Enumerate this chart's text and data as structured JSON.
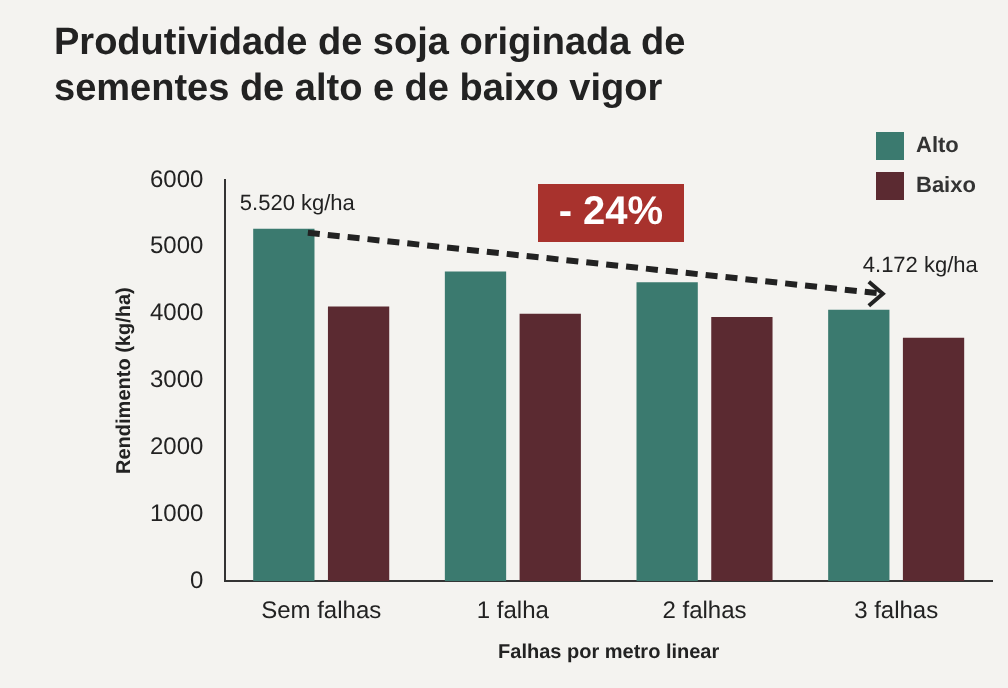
{
  "chart_data": {
    "type": "bar",
    "title": "Produtividade de soja originada de sementes de alto e de baixo vigor",
    "xlabel": "Falhas por metro linear",
    "ylabel": "Rendimento (kg/ha)",
    "categories": [
      "Sem falhas",
      "1 falha",
      "2 falhas",
      "3 falhas"
    ],
    "series": [
      {
        "name": "Alto",
        "color": "#3b7a6f",
        "values": [
          5270,
          4630,
          4470,
          4060
        ]
      },
      {
        "name": "Baixo",
        "color": "#5b2a31",
        "values": [
          4110,
          4000,
          3950,
          3640
        ]
      }
    ],
    "ylim": [
      0,
      6000
    ],
    "yticks": [
      0,
      1000,
      2000,
      3000,
      4000,
      5000,
      6000
    ],
    "grid": false,
    "legend": "top right",
    "annotations": [
      "5.520 kg/ha",
      "4.172 kg/ha",
      "- 24%"
    ]
  }
}
